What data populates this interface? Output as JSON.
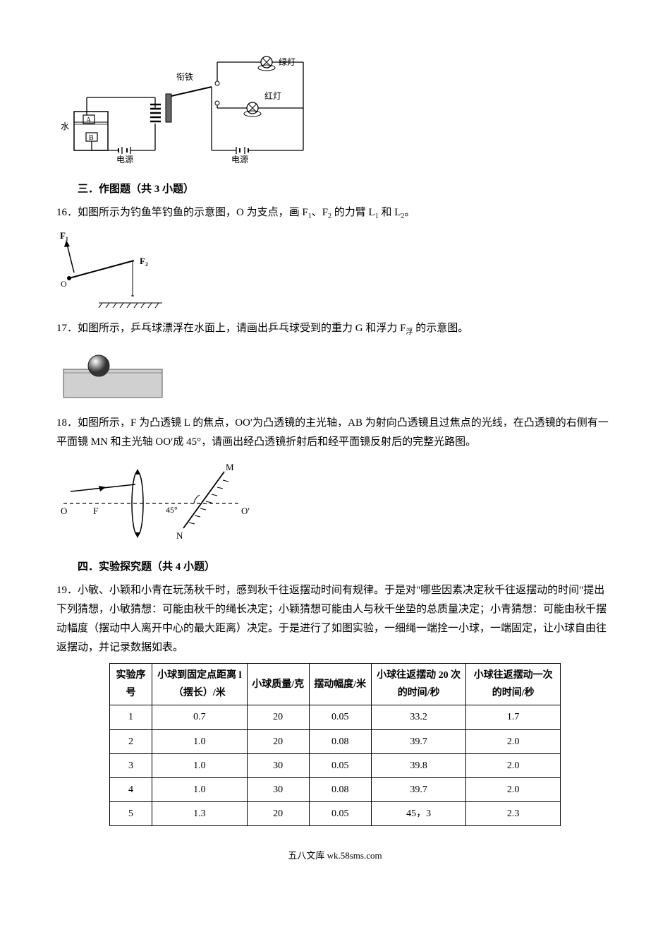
{
  "figure_top": {
    "water_label": "水",
    "A_label": "A",
    "B_label": "B",
    "source1": "电源",
    "source2": "电源",
    "iron_label": "衔铁",
    "green_light": "绿灯",
    "red_light": "红灯"
  },
  "section3": {
    "title": "三．作图题（共 3 小题）"
  },
  "q16": {
    "text_parts": {
      "a": "16．如图所示为钓鱼竿钓鱼的示意图，O 为支点，画 F",
      "sub1": "1",
      "mid": "、F",
      "sub2": "2",
      "b": " 的力臂 L",
      "sub3": "1",
      "c": " 和 L",
      "sub4": "2",
      "d": "。"
    },
    "F1": "F₁",
    "F2": "F₂",
    "O": "O"
  },
  "q17": {
    "text_parts": {
      "a": "17．如图所示，乒乓球漂浮在水面上，请画出乒乓球受到的重力 G 和浮力 F",
      "sub": "浮",
      "b": " 的示意图。"
    }
  },
  "q18": {
    "text": "18．如图所示，F 为凸透镜 L 的焦点，OO′为凸透镜的主光轴，AB 为射向凸透镜且过焦点的光线，在凸透镜的右侧有一平面镜 MN 和主光轴 OO′成 45°，请画出经凸透镜折射后和经平面镜反射后的完整光路图。",
    "O": "O",
    "F": "F",
    "Oprime": "O′",
    "M": "M",
    "N": "N",
    "angle": "45°"
  },
  "section4": {
    "title": "四．实验探究题（共 4 小题）"
  },
  "q19": {
    "text": "19．小敏、小颖和小青在玩荡秋千时，感到秋千往返摆动时间有规律。于是对\"哪些因素决定秋千往返摆动的时间\"提出下列猜想，小敏猜想：可能由秋千的绳长决定；小颖猜想可能由人与秋千坐垫的总质量决定；小青猜想：可能由秋千摆动幅度（摆动中人离开中心的最大距离）决定。于是进行了如图实验，一细绳一端拴一小球，一端固定，让小球自由往返摆动，并记录数据如表。",
    "table": {
      "headers": [
        "实验序号",
        "小球到固定点距离 l（摆长）/米",
        "小球质量/克",
        "摆动幅度/米",
        "小球往返摆动 20 次的时间/秒",
        "小球往返摆动一次的时间/秒"
      ],
      "rows": [
        [
          "1",
          "0.7",
          "20",
          "0.05",
          "33.2",
          "1.7"
        ],
        [
          "2",
          "1.0",
          "20",
          "0.08",
          "39.7",
          "2.0"
        ],
        [
          "3",
          "1.0",
          "30",
          "0.05",
          "39.8",
          "2.0"
        ],
        [
          "4",
          "1.0",
          "30",
          "0.08",
          "39.7",
          "2.0"
        ],
        [
          "5",
          "1.3",
          "20",
          "0.05",
          "45，3",
          "2.3"
        ]
      ]
    }
  },
  "footer": {
    "text": "五八文库 wk.58sms.com"
  }
}
